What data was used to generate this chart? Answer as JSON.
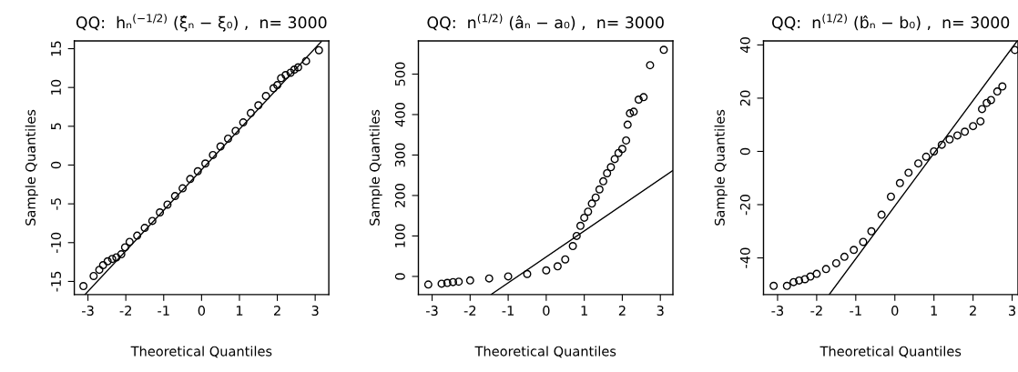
{
  "chart_data": [
    {
      "type": "scatter",
      "title": "QQ:  hₙ$^{(−1/2)}$ (ξ̂ₙ − ξ₀) ,  n= 3000",
      "xlabel": "Theoretical Quantiles",
      "ylabel": "Sample Quantiles",
      "xlim": [
        -3.36,
        3.36
      ],
      "ylim": [
        -16.7,
        16
      ],
      "xticks": [
        -3,
        -2,
        -1,
        0,
        1,
        2,
        3
      ],
      "yticks": [
        -15,
        -10,
        -5,
        0,
        5,
        10,
        15
      ],
      "grid": false,
      "series": [
        {
          "marker": "circle",
          "color": "#000000",
          "x": [
            -3.12,
            -2.85,
            -2.7,
            -2.6,
            -2.48,
            -2.36,
            -2.25,
            -2.12,
            -2.02,
            -1.9,
            -1.7,
            -1.5,
            -1.3,
            -1.1,
            -0.9,
            -0.7,
            -0.5,
            -0.3,
            -0.1,
            0.1,
            0.3,
            0.5,
            0.7,
            0.9,
            1.1,
            1.3,
            1.5,
            1.7,
            1.9,
            2.0,
            2.1,
            2.22,
            2.35,
            2.45,
            2.55,
            2.76,
            3.1
          ],
          "values": [
            -15.6,
            -14.3,
            -13.5,
            -12.9,
            -12.4,
            -12.1,
            -11.9,
            -11.5,
            -10.6,
            -9.9,
            -9.1,
            -8.1,
            -7.2,
            -6.1,
            -5.1,
            -4.0,
            -3.0,
            -1.8,
            -0.8,
            0.2,
            1.3,
            2.4,
            3.4,
            4.4,
            5.5,
            6.7,
            7.7,
            8.9,
            9.9,
            10.3,
            11.2,
            11.6,
            11.9,
            12.3,
            12.6,
            13.4,
            14.8
          ]
        },
        {
          "type": "line",
          "marker": "none",
          "color": "#000000",
          "x": [
            -3.08,
            3.16
          ],
          "values": [
            -16.7,
            15.9
          ]
        }
      ]
    },
    {
      "type": "scatter",
      "title": "QQ:  n$^{(1/2)}$ (âₙ − a₀) ,  n= 3000",
      "xlabel": "Theoretical Quantiles",
      "ylabel": "Sample Quantiles",
      "xlim": [
        -3.36,
        3.33
      ],
      "ylim": [
        -45,
        582
      ],
      "xticks": [
        -3,
        -2,
        -1,
        0,
        1,
        2,
        3
      ],
      "yticks": [
        0,
        100,
        200,
        300,
        400,
        500
      ],
      "grid": false,
      "series": [
        {
          "marker": "circle",
          "color": "#000000",
          "x": [
            -3.1,
            -2.75,
            -2.6,
            -2.45,
            -2.3,
            -2.0,
            -1.5,
            -1.0,
            -0.5,
            0.0,
            0.3,
            0.5,
            0.7,
            0.8,
            0.9,
            1.0,
            1.1,
            1.2,
            1.3,
            1.4,
            1.5,
            1.6,
            1.7,
            1.8,
            1.9,
            2.0,
            2.1,
            2.14,
            2.2,
            2.3,
            2.43,
            2.56,
            2.73,
            3.09
          ],
          "values": [
            -20,
            -18,
            -16,
            -14,
            -13,
            -10,
            -5,
            0,
            6,
            15,
            25,
            42,
            75,
            100,
            125,
            145,
            160,
            180,
            195,
            215,
            235,
            255,
            270,
            290,
            305,
            315,
            336,
            375,
            403,
            407,
            437,
            443,
            522,
            560
          ]
        },
        {
          "type": "line",
          "marker": "none",
          "color": "#000000",
          "x": [
            -1.44,
            3.32
          ],
          "values": [
            -44,
            261
          ]
        }
      ]
    },
    {
      "type": "scatter",
      "title": "QQ:  n$^{(1/2)}$ (b̂ₙ − b₀) ,  n= 3000",
      "xlabel": "Theoretical Quantiles",
      "ylabel": "Sample Quantiles",
      "xlim": [
        -3.36,
        3.15
      ],
      "ylim": [
        -53.8,
        41.5
      ],
      "xticks": [
        -3,
        -2,
        -1,
        0,
        1,
        2,
        3
      ],
      "yticks": [
        -40,
        -20,
        0,
        20,
        40
      ],
      "grid": false,
      "series": [
        {
          "marker": "circle",
          "color": "#000000",
          "x": [
            -3.1,
            -2.76,
            -2.59,
            -2.45,
            -2.3,
            -2.16,
            -2.0,
            -1.76,
            -1.5,
            -1.29,
            -1.05,
            -0.81,
            -0.6,
            -0.34,
            -0.1,
            0.13,
            0.35,
            0.6,
            0.8,
            1.0,
            1.2,
            1.4,
            1.6,
            1.79,
            2.0,
            2.19,
            2.23,
            2.35,
            2.46,
            2.62,
            2.75,
            3.07
          ],
          "values": [
            -50.5,
            -50.5,
            -49.1,
            -48.5,
            -48,
            -47,
            -46,
            -44.2,
            -42,
            -39.6,
            -37,
            -34,
            -30,
            -23.8,
            -17,
            -11.9,
            -8,
            -4.5,
            -2,
            0,
            2.5,
            4.5,
            6,
            7.4,
            9.5,
            11.3,
            15.9,
            18.2,
            19.3,
            22.5,
            24.4,
            38.1
          ]
        },
        {
          "type": "line",
          "marker": "none",
          "color": "#000000",
          "x": [
            -1.68,
            3.12
          ],
          "values": [
            -53.8,
            41.3
          ]
        }
      ]
    }
  ]
}
